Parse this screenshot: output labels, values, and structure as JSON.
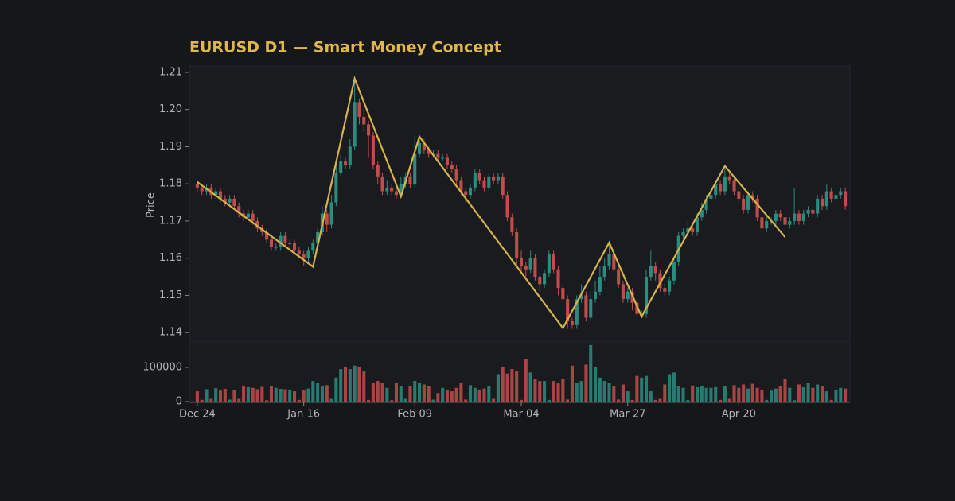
{
  "chart_data": {
    "type": "candlestick",
    "title": "EURUSD D1 — Smart Money Concept",
    "ylabel": "Price",
    "categories": [
      "Dec 24",
      null,
      null,
      null,
      null,
      null,
      null,
      null,
      null,
      null,
      null,
      null,
      null,
      null,
      null,
      null,
      null,
      null,
      null,
      null,
      null,
      null,
      null,
      "Jan 16",
      null,
      null,
      null,
      null,
      null,
      null,
      null,
      null,
      null,
      null,
      null,
      null,
      null,
      null,
      null,
      null,
      null,
      null,
      null,
      null,
      null,
      null,
      null,
      "Feb 09",
      null,
      null,
      null,
      null,
      null,
      null,
      null,
      null,
      null,
      null,
      null,
      null,
      null,
      null,
      null,
      null,
      null,
      null,
      null,
      null,
      null,
      null,
      "Mar 04",
      null,
      null,
      null,
      null,
      null,
      null,
      null,
      null,
      null,
      null,
      null,
      null,
      null,
      null,
      null,
      null,
      null,
      null,
      null,
      null,
      null,
      null,
      "Mar 27",
      null,
      null,
      null,
      null,
      null,
      null,
      null,
      null,
      null,
      null,
      null,
      null,
      null,
      null,
      null,
      null,
      null,
      null,
      null,
      null,
      null,
      null,
      null,
      "Apr 20",
      null,
      null,
      null,
      null,
      null,
      null,
      null,
      null,
      null,
      null,
      null,
      null,
      null,
      null,
      null,
      null,
      null,
      null,
      null,
      null,
      null,
      null,
      null
    ],
    "open": [
      1.18,
      1.179,
      1.178,
      1.179,
      1.177,
      1.178,
      1.176,
      1.175,
      1.176,
      1.174,
      1.172,
      1.171,
      1.172,
      1.17,
      1.168,
      1.167,
      1.165,
      1.163,
      1.163,
      1.166,
      1.164,
      1.164,
      1.162,
      1.161,
      1.16,
      1.162,
      1.164,
      1.167,
      1.172,
      1.169,
      1.175,
      1.183,
      1.186,
      1.185,
      1.19,
      1.202,
      1.198,
      1.196,
      1.193,
      1.185,
      1.182,
      1.178,
      1.179,
      1.178,
      1.177,
      1.18,
      1.182,
      1.18,
      1.188,
      1.191,
      1.189,
      1.188,
      1.188,
      1.187,
      1.187,
      1.185,
      1.184,
      1.181,
      1.178,
      1.177,
      1.179,
      1.183,
      1.181,
      1.179,
      1.182,
      1.181,
      1.182,
      1.177,
      1.171,
      1.167,
      1.16,
      1.158,
      1.157,
      1.16,
      1.155,
      1.153,
      1.156,
      1.161,
      1.157,
      1.152,
      1.149,
      1.143,
      1.142,
      1.149,
      1.15,
      1.144,
      1.149,
      1.151,
      1.155,
      1.158,
      1.161,
      1.157,
      1.153,
      1.149,
      1.151,
      1.148,
      1.145,
      1.145,
      1.155,
      1.158,
      1.156,
      1.152,
      1.151,
      1.154,
      1.159,
      1.166,
      1.167,
      1.168,
      1.167,
      1.171,
      1.173,
      1.176,
      1.177,
      1.18,
      1.178,
      1.182,
      1.181,
      1.178,
      1.176,
      1.173,
      1.177,
      1.176,
      1.171,
      1.168,
      1.17,
      1.17,
      1.172,
      1.171,
      1.169,
      1.17,
      1.172,
      1.17,
      1.172,
      1.173,
      1.172,
      1.176,
      1.174,
      1.178,
      1.176,
      1.177,
      1.178
    ],
    "high": [
      1.181,
      1.18,
      1.18,
      1.18,
      1.179,
      1.179,
      1.177,
      1.177,
      1.177,
      1.175,
      1.173,
      1.173,
      1.173,
      1.171,
      1.169,
      1.168,
      1.166,
      1.164,
      1.167,
      1.167,
      1.165,
      1.165,
      1.163,
      1.162,
      1.163,
      1.165,
      1.168,
      1.174,
      1.173,
      1.177,
      1.185,
      1.188,
      1.187,
      1.192,
      1.208,
      1.203,
      1.2,
      1.197,
      1.194,
      1.186,
      1.183,
      1.181,
      1.18,
      1.179,
      1.182,
      1.183,
      1.183,
      1.193,
      1.193,
      1.192,
      1.19,
      1.189,
      1.189,
      1.188,
      1.188,
      1.186,
      1.185,
      1.182,
      1.179,
      1.18,
      1.184,
      1.184,
      1.182,
      1.183,
      1.183,
      1.183,
      1.183,
      1.178,
      1.172,
      1.168,
      1.162,
      1.159,
      1.162,
      1.161,
      1.156,
      1.157,
      1.162,
      1.162,
      1.158,
      1.153,
      1.15,
      1.144,
      1.15,
      1.153,
      1.151,
      1.151,
      1.154,
      1.158,
      1.16,
      1.164,
      1.162,
      1.158,
      1.154,
      1.152,
      1.152,
      1.149,
      1.146,
      1.157,
      1.162,
      1.159,
      1.157,
      1.153,
      1.155,
      1.16,
      1.167,
      1.168,
      1.17,
      1.169,
      1.172,
      1.175,
      1.177,
      1.179,
      1.181,
      1.181,
      1.184,
      1.183,
      1.182,
      1.179,
      1.177,
      1.178,
      1.178,
      1.177,
      1.172,
      1.171,
      1.171,
      1.173,
      1.173,
      1.172,
      1.171,
      1.179,
      1.173,
      1.173,
      1.174,
      1.174,
      1.177,
      1.177,
      1.18,
      1.179,
      1.179,
      1.179,
      1.179
    ],
    "low": [
      1.178,
      1.177,
      1.177,
      1.176,
      1.176,
      1.175,
      1.174,
      1.174,
      1.173,
      1.171,
      1.17,
      1.17,
      1.169,
      1.167,
      1.166,
      1.164,
      1.162,
      1.162,
      1.162,
      1.163,
      1.163,
      1.161,
      1.16,
      1.158,
      1.159,
      1.161,
      1.163,
      1.166,
      1.167,
      1.168,
      1.174,
      1.182,
      1.184,
      1.184,
      1.189,
      1.196,
      1.194,
      1.187,
      1.184,
      1.18,
      1.177,
      1.177,
      1.177,
      1.176,
      1.177,
      1.179,
      1.179,
      1.179,
      1.187,
      1.188,
      1.187,
      1.187,
      1.186,
      1.186,
      1.184,
      1.183,
      1.18,
      1.177,
      1.175,
      1.176,
      1.178,
      1.18,
      1.178,
      1.178,
      1.18,
      1.18,
      1.176,
      1.17,
      1.166,
      1.158,
      1.156,
      1.155,
      1.156,
      1.154,
      1.151,
      1.152,
      1.155,
      1.156,
      1.15,
      1.148,
      1.141,
      1.141,
      1.141,
      1.148,
      1.143,
      1.143,
      1.148,
      1.15,
      1.154,
      1.157,
      1.156,
      1.152,
      1.148,
      1.148,
      1.146,
      1.144,
      1.144,
      1.144,
      1.154,
      1.154,
      1.151,
      1.15,
      1.15,
      1.153,
      1.158,
      1.165,
      1.166,
      1.166,
      1.166,
      1.17,
      1.172,
      1.175,
      1.176,
      1.177,
      1.177,
      1.18,
      1.177,
      1.175,
      1.172,
      1.172,
      1.175,
      1.17,
      1.167,
      1.167,
      1.169,
      1.169,
      1.17,
      1.168,
      1.168,
      1.169,
      1.169,
      1.169,
      1.171,
      1.171,
      1.171,
      1.173,
      1.173,
      1.175,
      1.175,
      1.176,
      1.173
    ],
    "close": [
      1.179,
      1.178,
      1.179,
      1.177,
      1.178,
      1.176,
      1.175,
      1.176,
      1.174,
      1.172,
      1.171,
      1.172,
      1.17,
      1.168,
      1.167,
      1.165,
      1.163,
      1.163,
      1.166,
      1.164,
      1.164,
      1.162,
      1.161,
      1.16,
      1.162,
      1.164,
      1.167,
      1.172,
      1.169,
      1.175,
      1.183,
      1.186,
      1.185,
      1.19,
      1.202,
      1.198,
      1.196,
      1.193,
      1.185,
      1.182,
      1.178,
      1.179,
      1.178,
      1.177,
      1.18,
      1.182,
      1.18,
      1.188,
      1.191,
      1.189,
      1.188,
      1.188,
      1.187,
      1.187,
      1.185,
      1.184,
      1.181,
      1.178,
      1.177,
      1.179,
      1.183,
      1.181,
      1.179,
      1.182,
      1.181,
      1.182,
      1.177,
      1.171,
      1.167,
      1.16,
      1.158,
      1.157,
      1.16,
      1.155,
      1.153,
      1.156,
      1.161,
      1.157,
      1.152,
      1.149,
      1.143,
      1.142,
      1.149,
      1.15,
      1.144,
      1.149,
      1.151,
      1.155,
      1.158,
      1.161,
      1.157,
      1.153,
      1.149,
      1.151,
      1.148,
      1.145,
      1.145,
      1.155,
      1.158,
      1.156,
      1.152,
      1.151,
      1.154,
      1.159,
      1.166,
      1.167,
      1.168,
      1.167,
      1.171,
      1.173,
      1.176,
      1.177,
      1.18,
      1.178,
      1.182,
      1.181,
      1.178,
      1.176,
      1.173,
      1.177,
      1.176,
      1.171,
      1.168,
      1.17,
      1.17,
      1.172,
      1.171,
      1.169,
      1.17,
      1.172,
      1.17,
      1.172,
      1.173,
      1.172,
      1.176,
      1.174,
      1.178,
      1.176,
      1.177,
      1.178,
      1.174
    ],
    "volume": [
      30000,
      5000,
      36000,
      8000,
      39000,
      32000,
      37000,
      6000,
      34000,
      8000,
      46000,
      42000,
      40000,
      36000,
      43000,
      4000,
      45000,
      40000,
      37000,
      36000,
      35000,
      30000,
      5000,
      34000,
      38000,
      60000,
      55000,
      45000,
      48000,
      8000,
      70000,
      95000,
      100000,
      95000,
      105000,
      100000,
      88000,
      5000,
      55000,
      60000,
      55000,
      40000,
      4000,
      55000,
      45000,
      8000,
      45000,
      60000,
      55000,
      50000,
      45000,
      6000,
      25000,
      40000,
      35000,
      30000,
      40000,
      55000,
      6000,
      48000,
      40000,
      35000,
      38000,
      45000,
      8000,
      80000,
      100000,
      82000,
      95000,
      90000,
      5000,
      125000,
      85000,
      65000,
      60000,
      60000,
      5000,
      60000,
      55000,
      65000,
      6000,
      105000,
      55000,
      60000,
      108000,
      165000,
      100000,
      70000,
      60000,
      55000,
      45000,
      6000,
      50000,
      30000,
      5000,
      75000,
      70000,
      75000,
      30000,
      5000,
      8000,
      50000,
      80000,
      85000,
      45000,
      40000,
      5000,
      47000,
      42000,
      45000,
      40000,
      40000,
      42000,
      5000,
      45000,
      8000,
      48000,
      40000,
      50000,
      38000,
      52000,
      40000,
      35000,
      5000,
      32000,
      38000,
      45000,
      65000,
      40000,
      4000,
      50000,
      42000,
      55000,
      40000,
      50000,
      45000,
      30000,
      5000,
      35000,
      40000,
      38000
    ],
    "up_color": "#2b8c80",
    "down_color": "#c24c4c",
    "zigzag": {
      "color": "#d4b44a",
      "x": [
        0,
        25,
        34,
        44,
        48,
        79,
        89,
        96,
        114,
        127
      ],
      "values": [
        1.1805,
        1.1577,
        1.2083,
        1.1766,
        1.1927,
        1.1412,
        1.1642,
        1.1443,
        1.1848,
        1.1657
      ]
    },
    "ylim": [
      1.1379,
      1.2117
    ],
    "yticks": [
      1.14,
      1.15,
      1.16,
      1.17,
      1.18,
      1.19,
      {
        "value": 1.2,
        "label": "1.20"
      },
      1.21
    ],
    "volume_ylim": [
      0,
      174000
    ],
    "volume_yticks": [
      0,
      100000
    ]
  }
}
